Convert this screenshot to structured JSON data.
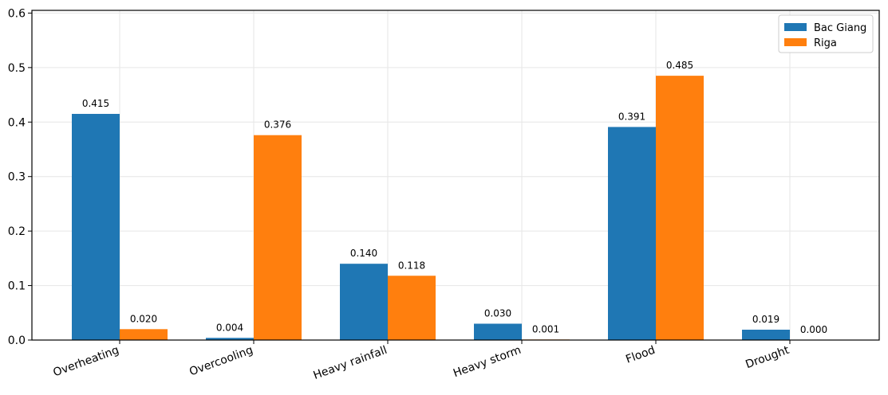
{
  "chart_data": {
    "type": "bar",
    "categories": [
      "Overheating",
      "Overcooling",
      "Heavy rainfall",
      "Heavy storm",
      "Flood",
      "Drought"
    ],
    "series": [
      {
        "name": "Bac Giang",
        "color": "#1f77b4",
        "values": [
          0.415,
          0.004,
          0.14,
          0.03,
          0.391,
          0.019
        ],
        "labels": [
          "0.415",
          "0.004",
          "0.140",
          "0.030",
          "0.391",
          "0.019"
        ]
      },
      {
        "name": "Riga",
        "color": "#ff7f0e",
        "values": [
          0.02,
          0.376,
          0.118,
          0.001,
          0.485,
          0.0
        ],
        "labels": [
          "0.020",
          "0.376",
          "0.118",
          "0.001",
          "0.485",
          "0.000"
        ]
      }
    ],
    "yticks": [
      0.0,
      0.1,
      0.2,
      0.3,
      0.4,
      0.5,
      0.6
    ],
    "ytick_labels": [
      "0.0",
      "0.1",
      "0.2",
      "0.3",
      "0.4",
      "0.5",
      "0.6"
    ],
    "ylim": [
      0,
      0.605
    ],
    "grid": true,
    "legend": "top-right",
    "title": "",
    "xlabel": "",
    "ylabel": ""
  }
}
